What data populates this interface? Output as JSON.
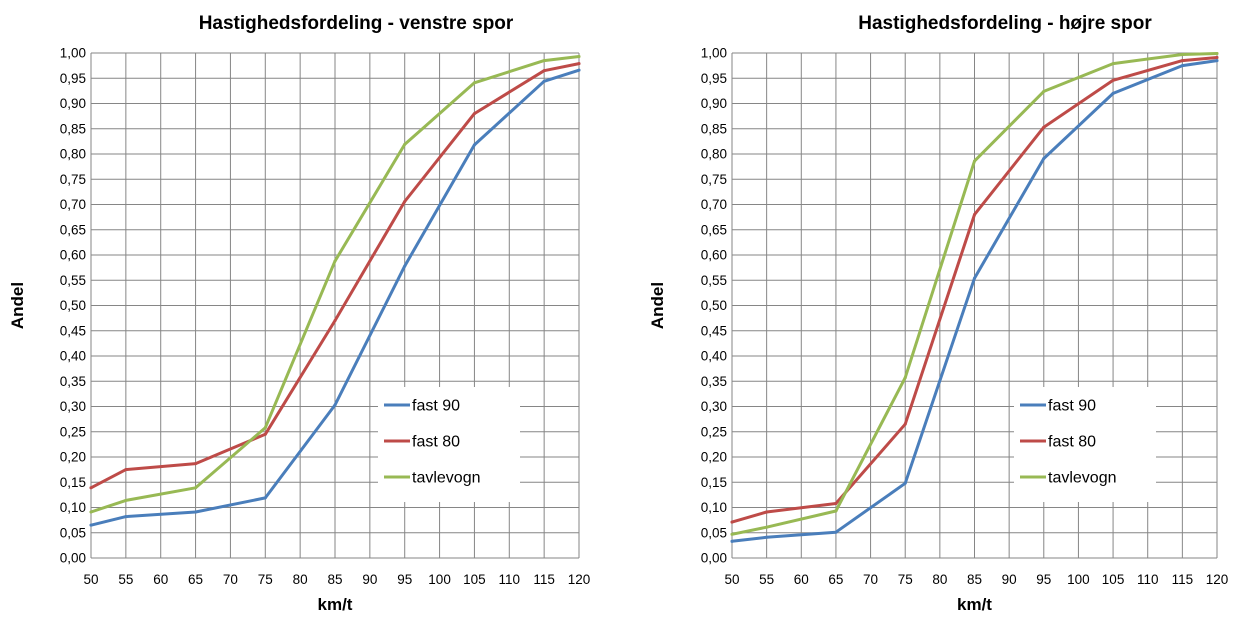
{
  "chart_data": [
    {
      "type": "line",
      "title": "Hastighedsfordeling - venstre spor",
      "xlabel": "km/t",
      "ylabel": "Andel",
      "x": [
        50,
        55,
        65,
        75,
        85,
        95,
        105,
        115,
        120
      ],
      "x_ticks": [
        "50",
        "55",
        "60",
        "65",
        "70",
        "75",
        "80",
        "85",
        "90",
        "95",
        "100",
        "105",
        "110",
        "115",
        "120"
      ],
      "y_ticks": [
        "0,00",
        "0,05",
        "0,10",
        "0,15",
        "0,20",
        "0,25",
        "0,30",
        "0,35",
        "0,40",
        "0,45",
        "0,50",
        "0,55",
        "0,60",
        "0,65",
        "0,70",
        "0,75",
        "0,80",
        "0,85",
        "0,90",
        "0,95",
        "1,00"
      ],
      "xlim": [
        50,
        120
      ],
      "ylim": [
        0,
        1
      ],
      "grid": true,
      "legend_position": "lower-right",
      "series": [
        {
          "name": "fast 90",
          "color": "#4a7ebb",
          "values": [
            0.065,
            0.082,
            0.091,
            0.119,
            0.303,
            0.578,
            0.818,
            0.944,
            0.966
          ]
        },
        {
          "name": "fast 80",
          "color": "#be4b48",
          "values": [
            0.139,
            0.175,
            0.187,
            0.245,
            0.47,
            0.706,
            0.88,
            0.965,
            0.979
          ]
        },
        {
          "name": "tavlevogn",
          "color": "#98b954",
          "values": [
            0.091,
            0.114,
            0.139,
            0.258,
            0.588,
            0.819,
            0.941,
            0.985,
            0.993
          ]
        }
      ]
    },
    {
      "type": "line",
      "title": "Hastighedsfordeling - højre spor",
      "xlabel": "km/t",
      "ylabel": "Andel",
      "x": [
        50,
        55,
        65,
        75,
        85,
        95,
        105,
        115,
        120
      ],
      "x_ticks": [
        "50",
        "55",
        "60",
        "65",
        "70",
        "75",
        "80",
        "85",
        "90",
        "95",
        "100",
        "105",
        "110",
        "115",
        "120"
      ],
      "y_ticks": [
        "0,00",
        "0,05",
        "0,10",
        "0,15",
        "0,20",
        "0,25",
        "0,30",
        "0,35",
        "0,40",
        "0,45",
        "0,50",
        "0,55",
        "0,60",
        "0,65",
        "0,70",
        "0,75",
        "0,80",
        "0,85",
        "0,90",
        "0,95",
        "1,00"
      ],
      "xlim": [
        50,
        120
      ],
      "ylim": [
        0,
        1
      ],
      "grid": true,
      "legend_position": "lower-right",
      "series": [
        {
          "name": "fast 90",
          "color": "#4a7ebb",
          "values": [
            0.033,
            0.041,
            0.051,
            0.148,
            0.554,
            0.791,
            0.92,
            0.975,
            0.985
          ]
        },
        {
          "name": "fast 80",
          "color": "#be4b48",
          "values": [
            0.071,
            0.091,
            0.108,
            0.265,
            0.68,
            0.853,
            0.946,
            0.985,
            0.991
          ]
        },
        {
          "name": "tavlevogn",
          "color": "#98b954",
          "values": [
            0.047,
            0.061,
            0.093,
            0.357,
            0.786,
            0.924,
            0.979,
            0.997,
            0.999
          ]
        }
      ]
    }
  ]
}
